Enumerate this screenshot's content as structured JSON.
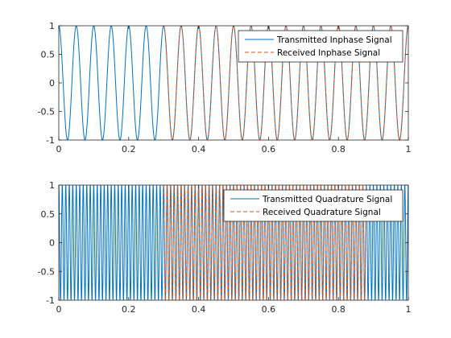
{
  "chart_data": [
    {
      "type": "line",
      "title": "",
      "xlabel": "",
      "ylabel": "",
      "xlim": [
        0,
        1
      ],
      "ylim": [
        -1,
        1
      ],
      "x_ticks": [
        "0",
        "0.2",
        "0.4",
        "0.6",
        "0.8",
        "1"
      ],
      "y_ticks": [
        "-1",
        "-0.5",
        "0",
        "0.5",
        "1"
      ],
      "legend_position": "top-right",
      "grid": false,
      "series": [
        {
          "name": "Transmitted Inphase Signal",
          "color": "#0072BD",
          "style": "solid",
          "function": "cos",
          "x_start": 0,
          "x_end": 1,
          "cycles": 20
        },
        {
          "name": "Received Inphase Signal",
          "color": "#D95319",
          "style": "dashed",
          "function": "cos",
          "x_start": 0.3,
          "x_end": 1,
          "cycles": 20
        }
      ]
    },
    {
      "type": "line",
      "title": "",
      "xlabel": "",
      "ylabel": "",
      "xlim": [
        0,
        1
      ],
      "ylim": [
        -1,
        1
      ],
      "x_ticks": [
        "0",
        "0.2",
        "0.4",
        "0.6",
        "0.8",
        "1"
      ],
      "y_ticks": [
        "-1",
        "-0.5",
        "0",
        "0.5",
        "1"
      ],
      "legend_position": "top-right",
      "grid": false,
      "series": [
        {
          "name": "Transmitted Quadrature Signal",
          "color": "#0072BD",
          "style": "solid",
          "function": "cos",
          "x_start": 0,
          "x_end": 1,
          "cycles": 100
        },
        {
          "name": "Received Quadrature Signal",
          "color": "#D95319",
          "style": "dashed",
          "function": "cos",
          "x_start": 0.3,
          "x_end": 0.88,
          "cycles": 100
        }
      ]
    }
  ]
}
